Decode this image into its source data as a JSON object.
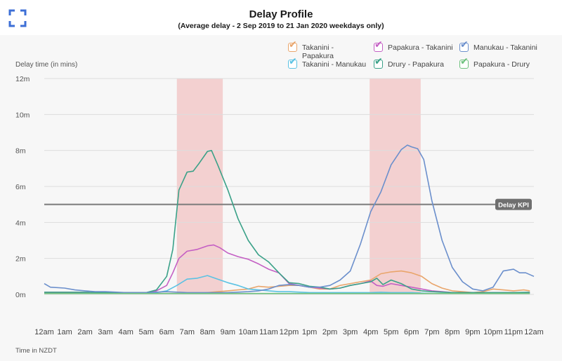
{
  "header": {
    "title": "Delay Profile",
    "subtitle": "(Average delay - 2 Sep 2019 to 21 Jan 2020 weekdays only)"
  },
  "footer": {
    "time_label": "Time in NZDT"
  },
  "colors": {
    "band": "#f2c9c9",
    "kpi_line": "#7a7a7a",
    "kpi_tag": "#6f6f6f",
    "grid": "#dddddd",
    "icon": "#3d6fd6"
  },
  "chart_data": {
    "type": "line",
    "title": "Delay Profile",
    "subtitle": "(Average delay - 2 Sep 2019 to 21 Jan 2020 weekdays only)",
    "ylabel": "Delay time (in mins)",
    "xlabel": "Time in NZDT",
    "ylim": [
      0,
      12
    ],
    "yticks": [
      0,
      2,
      4,
      6,
      8,
      10,
      12
    ],
    "ytick_labels": [
      "0m",
      "2m",
      "4m",
      "6m",
      "8m",
      "10m",
      "12m"
    ],
    "xlim": [
      0,
      24
    ],
    "x_tick_labels": [
      "12am",
      "1am",
      "2am",
      "3am",
      "4am",
      "5am",
      "6am",
      "7am",
      "8am",
      "9am",
      "10am",
      "11am",
      "12pm",
      "1pm",
      "2pm",
      "3pm",
      "4pm",
      "5pm",
      "6pm",
      "7pm",
      "8pm",
      "9pm",
      "10pm",
      "11pm",
      "12am"
    ],
    "grid": true,
    "legend_position": "top-right",
    "shaded_periods": [
      [
        6.5,
        8.75
      ],
      [
        15.95,
        18.45
      ]
    ],
    "reference_line": {
      "value": 5,
      "label": "Delay KPI"
    },
    "series": [
      {
        "name": "Takanini - Papakura",
        "color": "#e9a56b",
        "points": [
          [
            0,
            0.08
          ],
          [
            1,
            0.08
          ],
          [
            2,
            0.05
          ],
          [
            3,
            0.05
          ],
          [
            4,
            0.05
          ],
          [
            5,
            0.05
          ],
          [
            6,
            0.05
          ],
          [
            7,
            0.05
          ],
          [
            7.5,
            0.05
          ],
          [
            8,
            0.1
          ],
          [
            8.5,
            0.15
          ],
          [
            9,
            0.2
          ],
          [
            9.5,
            0.25
          ],
          [
            10,
            0.3
          ],
          [
            10.5,
            0.45
          ],
          [
            11,
            0.4
          ],
          [
            11.5,
            0.45
          ],
          [
            12,
            0.5
          ],
          [
            12.5,
            0.5
          ],
          [
            13,
            0.4
          ],
          [
            13.5,
            0.3
          ],
          [
            14,
            0.3
          ],
          [
            14.5,
            0.5
          ],
          [
            15,
            0.6
          ],
          [
            15.5,
            0.7
          ],
          [
            16,
            0.8
          ],
          [
            16.5,
            1.15
          ],
          [
            17,
            1.25
          ],
          [
            17.5,
            1.3
          ],
          [
            18,
            1.2
          ],
          [
            18.5,
            1.0
          ],
          [
            19,
            0.6
          ],
          [
            19.5,
            0.35
          ],
          [
            20,
            0.2
          ],
          [
            20.5,
            0.15
          ],
          [
            21,
            0.1
          ],
          [
            21.5,
            0.15
          ],
          [
            22,
            0.3
          ],
          [
            22.5,
            0.25
          ],
          [
            23,
            0.2
          ],
          [
            23.5,
            0.25
          ],
          [
            23.8,
            0.2
          ]
        ]
      },
      {
        "name": "Takanini - Manukau",
        "color": "#5bc2e3",
        "points": [
          [
            0,
            0.05
          ],
          [
            1,
            0.05
          ],
          [
            2,
            0.05
          ],
          [
            3,
            0.05
          ],
          [
            4,
            0.05
          ],
          [
            5,
            0.05
          ],
          [
            5.5,
            0.1
          ],
          [
            6,
            0.2
          ],
          [
            6.5,
            0.5
          ],
          [
            7,
            0.85
          ],
          [
            7.5,
            0.9
          ],
          [
            8,
            1.05
          ],
          [
            8.5,
            0.85
          ],
          [
            9,
            0.65
          ],
          [
            9.5,
            0.5
          ],
          [
            10,
            0.3
          ],
          [
            10.5,
            0.25
          ],
          [
            11,
            0.2
          ],
          [
            11.5,
            0.15
          ],
          [
            12,
            0.15
          ],
          [
            13,
            0.1
          ],
          [
            14,
            0.1
          ],
          [
            15,
            0.1
          ],
          [
            16,
            0.1
          ],
          [
            16.5,
            0.12
          ],
          [
            17,
            0.1
          ],
          [
            18,
            0.1
          ],
          [
            19,
            0.05
          ],
          [
            20,
            0.05
          ],
          [
            21,
            0.05
          ],
          [
            22,
            0.05
          ],
          [
            23,
            0.05
          ],
          [
            23.8,
            0.05
          ]
        ]
      },
      {
        "name": "Papakura - Takanini",
        "color": "#c45fc4",
        "points": [
          [
            0,
            0.12
          ],
          [
            1,
            0.12
          ],
          [
            2,
            0.12
          ],
          [
            3,
            0.1
          ],
          [
            4,
            0.1
          ],
          [
            5,
            0.1
          ],
          [
            5.5,
            0.2
          ],
          [
            6,
            0.5
          ],
          [
            6.3,
            1.2
          ],
          [
            6.6,
            2.0
          ],
          [
            7,
            2.4
          ],
          [
            7.5,
            2.5
          ],
          [
            8,
            2.7
          ],
          [
            8.3,
            2.75
          ],
          [
            8.6,
            2.6
          ],
          [
            9,
            2.3
          ],
          [
            9.5,
            2.1
          ],
          [
            10,
            1.95
          ],
          [
            10.5,
            1.7
          ],
          [
            11,
            1.4
          ],
          [
            11.5,
            1.2
          ],
          [
            12,
            0.6
          ],
          [
            12.5,
            0.5
          ],
          [
            13,
            0.4
          ],
          [
            13.5,
            0.35
          ],
          [
            14,
            0.3
          ],
          [
            14.5,
            0.35
          ],
          [
            15,
            0.5
          ],
          [
            15.5,
            0.6
          ],
          [
            16,
            0.75
          ],
          [
            16.3,
            0.5
          ],
          [
            16.6,
            0.45
          ],
          [
            17,
            0.6
          ],
          [
            17.5,
            0.5
          ],
          [
            18,
            0.4
          ],
          [
            18.5,
            0.3
          ],
          [
            19,
            0.2
          ],
          [
            19.5,
            0.15
          ],
          [
            20,
            0.1
          ],
          [
            21,
            0.1
          ],
          [
            22,
            0.1
          ],
          [
            23,
            0.1
          ],
          [
            23.8,
            0.1
          ]
        ]
      },
      {
        "name": "Drury - Papakura",
        "color": "#3aa188",
        "points": [
          [
            0,
            0.12
          ],
          [
            1,
            0.12
          ],
          [
            2,
            0.12
          ],
          [
            3,
            0.1
          ],
          [
            4,
            0.1
          ],
          [
            5,
            0.1
          ],
          [
            5.5,
            0.25
          ],
          [
            6,
            1.0
          ],
          [
            6.3,
            2.5
          ],
          [
            6.6,
            5.8
          ],
          [
            7,
            6.8
          ],
          [
            7.3,
            6.85
          ],
          [
            7.6,
            7.3
          ],
          [
            8,
            7.95
          ],
          [
            8.2,
            8.0
          ],
          [
            8.5,
            7.2
          ],
          [
            9,
            5.8
          ],
          [
            9.5,
            4.2
          ],
          [
            10,
            3.0
          ],
          [
            10.5,
            2.2
          ],
          [
            11,
            1.8
          ],
          [
            11.5,
            1.2
          ],
          [
            12,
            0.65
          ],
          [
            12.5,
            0.6
          ],
          [
            13,
            0.45
          ],
          [
            13.5,
            0.4
          ],
          [
            14,
            0.3
          ],
          [
            14.5,
            0.35
          ],
          [
            15,
            0.5
          ],
          [
            15.5,
            0.6
          ],
          [
            16,
            0.7
          ],
          [
            16.3,
            0.9
          ],
          [
            16.6,
            0.55
          ],
          [
            17,
            0.8
          ],
          [
            17.5,
            0.6
          ],
          [
            18,
            0.3
          ],
          [
            18.5,
            0.2
          ],
          [
            19,
            0.15
          ],
          [
            20,
            0.1
          ],
          [
            21,
            0.1
          ],
          [
            22,
            0.1
          ],
          [
            23,
            0.1
          ],
          [
            23.8,
            0.12
          ]
        ]
      },
      {
        "name": "Manukau - Takanini",
        "color": "#6b8fcc",
        "points": [
          [
            0,
            0.6
          ],
          [
            0.3,
            0.4
          ],
          [
            1,
            0.35
          ],
          [
            1.5,
            0.25
          ],
          [
            2,
            0.2
          ],
          [
            2.5,
            0.15
          ],
          [
            3,
            0.15
          ],
          [
            4,
            0.1
          ],
          [
            5,
            0.1
          ],
          [
            6,
            0.15
          ],
          [
            7,
            0.1
          ],
          [
            8,
            0.1
          ],
          [
            9,
            0.1
          ],
          [
            10,
            0.15
          ],
          [
            10.5,
            0.2
          ],
          [
            11,
            0.3
          ],
          [
            11.5,
            0.5
          ],
          [
            12,
            0.55
          ],
          [
            12.5,
            0.5
          ],
          [
            13,
            0.4
          ],
          [
            13.5,
            0.4
          ],
          [
            14,
            0.5
          ],
          [
            14.5,
            0.8
          ],
          [
            15,
            1.3
          ],
          [
            15.5,
            2.8
          ],
          [
            16,
            4.6
          ],
          [
            16.5,
            5.7
          ],
          [
            17,
            7.2
          ],
          [
            17.5,
            8.05
          ],
          [
            17.8,
            8.3
          ],
          [
            18,
            8.2
          ],
          [
            18.3,
            8.1
          ],
          [
            18.6,
            7.5
          ],
          [
            19,
            5.2
          ],
          [
            19.5,
            3.0
          ],
          [
            20,
            1.5
          ],
          [
            20.5,
            0.7
          ],
          [
            21,
            0.3
          ],
          [
            21.5,
            0.2
          ],
          [
            22,
            0.4
          ],
          [
            22.5,
            1.3
          ],
          [
            23,
            1.4
          ],
          [
            23.3,
            1.2
          ],
          [
            23.6,
            1.2
          ],
          [
            24,
            1.0
          ]
        ]
      },
      {
        "name": "Papakura - Drury",
        "color": "#6dc17d",
        "points": [
          [
            0,
            0.05
          ],
          [
            1,
            0.05
          ],
          [
            2,
            0.05
          ],
          [
            3,
            0.05
          ],
          [
            4,
            0.05
          ],
          [
            5,
            0.05
          ],
          [
            6,
            0.05
          ],
          [
            7,
            0.05
          ],
          [
            8,
            0.05
          ],
          [
            9,
            0.05
          ],
          [
            10,
            0.05
          ],
          [
            11,
            0.05
          ],
          [
            12,
            0.05
          ],
          [
            13,
            0.05
          ],
          [
            14,
            0.05
          ],
          [
            15,
            0.05
          ],
          [
            16,
            0.05
          ],
          [
            17,
            0.05
          ],
          [
            18,
            0.05
          ],
          [
            19,
            0.05
          ],
          [
            20,
            0.05
          ],
          [
            21,
            0.05
          ],
          [
            22,
            0.05
          ],
          [
            23,
            0.05
          ],
          [
            23.8,
            0.05
          ]
        ]
      }
    ]
  }
}
